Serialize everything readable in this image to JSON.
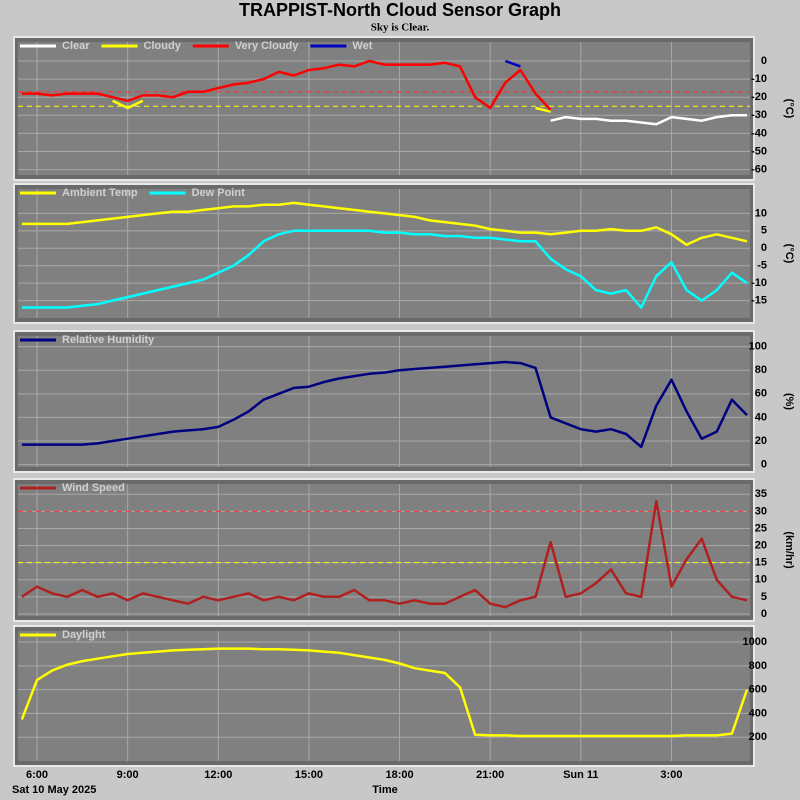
{
  "title": "TRAPPIST-North Cloud Sensor Graph",
  "subtitle": "Sky is Clear.",
  "chart_data": [
    {
      "type": "line",
      "ylabel": "(°C)",
      "ylim": [
        -63,
        10.5
      ],
      "yticks": [
        0,
        -10,
        -20,
        -30,
        -40,
        -50,
        -60
      ],
      "grid": true,
      "x": [
        5.5,
        6,
        6.5,
        7,
        7.5,
        8,
        8.5,
        9,
        9.5,
        10,
        10.5,
        11,
        11.5,
        12,
        12.5,
        13,
        13.5,
        14,
        14.5,
        15,
        15.5,
        16,
        16.5,
        17,
        17.5,
        18,
        18.5,
        19,
        19.5,
        20,
        20.5,
        21,
        21.5,
        22,
        22.5,
        23,
        23.5,
        24,
        24.5,
        25,
        25.5,
        26,
        26.5,
        27,
        27.5,
        28,
        28.5,
        29,
        29.5
      ],
      "thresholds": [
        {
          "value": -17,
          "color": "#ff3030"
        },
        {
          "value": -25,
          "color": "#ffff00"
        }
      ],
      "series": [
        {
          "name": "Clear",
          "color": "#ffffff",
          "values": [
            null,
            null,
            null,
            null,
            null,
            null,
            null,
            null,
            null,
            null,
            null,
            null,
            null,
            null,
            null,
            null,
            null,
            null,
            null,
            null,
            null,
            null,
            null,
            null,
            null,
            null,
            null,
            null,
            null,
            null,
            null,
            null,
            null,
            null,
            null,
            -33,
            -31,
            -32,
            -32,
            -33,
            -33,
            -34,
            -35,
            -31,
            -32,
            -33,
            -31,
            -30,
            -30
          ]
        },
        {
          "name": "Cloudy",
          "color": "#ffff00",
          "values": [
            null,
            null,
            null,
            null,
            null,
            null,
            -22,
            -26,
            -22,
            null,
            null,
            null,
            null,
            null,
            null,
            null,
            null,
            null,
            null,
            null,
            null,
            null,
            null,
            null,
            null,
            null,
            null,
            null,
            null,
            null,
            null,
            null,
            null,
            null,
            -26,
            -28,
            null,
            null,
            null,
            null,
            null,
            null,
            null,
            null,
            null,
            null,
            null,
            null,
            null
          ]
        },
        {
          "name": "Very Cloudy",
          "color": "#ff0000",
          "values": [
            -18,
            -18,
            -19,
            -18,
            -18,
            -18,
            -20,
            -22,
            -19,
            -19,
            -20,
            -17,
            -17,
            -15,
            -13,
            -12,
            -10,
            -6,
            -8,
            -5,
            -4,
            -2,
            -3,
            0,
            -2,
            -2,
            -2,
            -2,
            -1,
            -3,
            -20,
            -26,
            -12,
            -5,
            -18,
            -27,
            null,
            null,
            null,
            null,
            null,
            null,
            null,
            null,
            null,
            null,
            null,
            null,
            null
          ]
        },
        {
          "name": "Wet",
          "color": "#0000c0",
          "values": [
            null,
            null,
            null,
            null,
            null,
            null,
            null,
            null,
            null,
            null,
            null,
            null,
            null,
            null,
            null,
            null,
            null,
            null,
            null,
            null,
            null,
            null,
            null,
            null,
            null,
            null,
            null,
            null,
            null,
            null,
            null,
            null,
            0,
            -3,
            null,
            null,
            null,
            null,
            null,
            null,
            null,
            null,
            null,
            null,
            null,
            null,
            null,
            null,
            null
          ]
        }
      ]
    },
    {
      "type": "line",
      "ylabel": "(°C)",
      "ylim": [
        -20,
        17
      ],
      "yticks": [
        10,
        5,
        0,
        -5,
        -10,
        -15
      ],
      "grid": true,
      "x": [
        5.5,
        6,
        6.5,
        7,
        7.5,
        8,
        8.5,
        9,
        9.5,
        10,
        10.5,
        11,
        11.5,
        12,
        12.5,
        13,
        13.5,
        14,
        14.5,
        15,
        15.5,
        16,
        16.5,
        17,
        17.5,
        18,
        18.5,
        19,
        19.5,
        20,
        20.5,
        21,
        21.5,
        22,
        22.5,
        23,
        23.5,
        24,
        24.5,
        25,
        25.5,
        26,
        26.5,
        27,
        27.5,
        28,
        28.5,
        29,
        29.5
      ],
      "series": [
        {
          "name": "Ambient Temp",
          "color": "#ffff00",
          "values": [
            7,
            7,
            7,
            7,
            7.5,
            8,
            8.5,
            9,
            9.5,
            10,
            10.5,
            10.5,
            11,
            11.5,
            12,
            12,
            12.5,
            12.5,
            13,
            12.5,
            12,
            11.5,
            11,
            10.5,
            10,
            9.5,
            9,
            8,
            7.5,
            7,
            6.5,
            5.5,
            5,
            4.5,
            4.5,
            4,
            4.5,
            5,
            5,
            5.5,
            5,
            5,
            6,
            4,
            1,
            3,
            4,
            3,
            2
          ]
        },
        {
          "name": "Dew Point",
          "color": "#00ffff",
          "values": [
            -17,
            -17,
            -17,
            -17,
            -16.5,
            -16,
            -15,
            -14,
            -13,
            -12,
            -11,
            -10,
            -9,
            -7,
            -5,
            -2,
            2,
            4,
            5,
            5,
            5,
            5,
            5,
            5,
            4.5,
            4.5,
            4,
            4,
            3.5,
            3.5,
            3,
            3,
            2.5,
            2,
            2,
            -3,
            -6,
            -8,
            -12,
            -13,
            -12,
            -17,
            -8,
            -4,
            -12,
            -15,
            -12,
            -7,
            -10
          ]
        }
      ]
    },
    {
      "type": "line",
      "ylabel": "(%)",
      "ylim": [
        -2,
        109
      ],
      "yticks": [
        100,
        80,
        60,
        40,
        20,
        0
      ],
      "grid": true,
      "x": [
        5.5,
        6,
        6.5,
        7,
        7.5,
        8,
        8.5,
        9,
        9.5,
        10,
        10.5,
        11,
        11.5,
        12,
        12.5,
        13,
        13.5,
        14,
        14.5,
        15,
        15.5,
        16,
        16.5,
        17,
        17.5,
        18,
        18.5,
        19,
        19.5,
        20,
        20.5,
        21,
        21.5,
        22,
        22.5,
        23,
        23.5,
        24,
        24.5,
        25,
        25.5,
        26,
        26.5,
        27,
        27.5,
        28,
        28.5,
        29,
        29.5
      ],
      "series": [
        {
          "name": "Relative Humidity",
          "color": "#000080",
          "values": [
            17,
            17,
            17,
            17,
            17,
            18,
            20,
            22,
            24,
            26,
            28,
            29,
            30,
            32,
            38,
            45,
            55,
            60,
            65,
            66,
            70,
            73,
            75,
            77,
            78,
            80,
            81,
            82,
            83,
            84,
            85,
            86,
            87,
            86,
            82,
            40,
            35,
            30,
            28,
            30,
            26,
            15,
            50,
            72,
            45,
            22,
            28,
            55,
            42
          ]
        }
      ]
    },
    {
      "type": "line",
      "ylabel": "(km/hr)",
      "ylim": [
        -0.6,
        38
      ],
      "yticks": [
        35,
        30,
        25,
        20,
        15,
        10,
        5,
        0
      ],
      "grid": true,
      "x": [
        5.5,
        6,
        6.5,
        7,
        7.5,
        8,
        8.5,
        9,
        9.5,
        10,
        10.5,
        11,
        11.5,
        12,
        12.5,
        13,
        13.5,
        14,
        14.5,
        15,
        15.5,
        16,
        16.5,
        17,
        17.5,
        18,
        18.5,
        19,
        19.5,
        20,
        20.5,
        21,
        21.5,
        22,
        22.5,
        23,
        23.5,
        24,
        24.5,
        25,
        25.5,
        26,
        26.5,
        27,
        27.5,
        28,
        28.5,
        29,
        29.5
      ],
      "thresholds": [
        {
          "value": 30,
          "color": "#ff3030"
        },
        {
          "value": 15,
          "color": "#ffff00"
        }
      ],
      "series": [
        {
          "name": "Wind Speed",
          "color": "#b02020",
          "values": [
            5,
            8,
            6,
            5,
            7,
            5,
            6,
            4,
            6,
            5,
            4,
            3,
            5,
            4,
            5,
            6,
            4,
            5,
            4,
            6,
            5,
            5,
            7,
            4,
            4,
            3,
            4,
            3,
            3,
            5,
            7,
            3,
            2,
            4,
            5,
            21,
            5,
            6,
            9,
            13,
            6,
            5,
            33,
            8,
            16,
            22,
            10,
            5,
            4
          ]
        }
      ]
    },
    {
      "type": "line",
      "ylim": [
        0,
        1093
      ],
      "yticks": [
        1000,
        800,
        600,
        400,
        200
      ],
      "grid": true,
      "x": [
        5.5,
        6,
        6.5,
        7,
        7.5,
        8,
        8.5,
        9,
        9.5,
        10,
        10.5,
        11,
        11.5,
        12,
        12.5,
        13,
        13.5,
        14,
        14.5,
        15,
        15.5,
        16,
        16.5,
        17,
        17.5,
        18,
        18.5,
        19,
        19.5,
        20,
        20.5,
        21,
        21.5,
        22,
        22.5,
        23,
        23.5,
        24,
        24.5,
        25,
        25.5,
        26,
        26.5,
        27,
        27.5,
        28,
        28.5,
        29,
        29.5
      ],
      "xlim": [
        5.37,
        29.6
      ],
      "xticks": [
        {
          "value": 6,
          "label": "6:00"
        },
        {
          "value": 9,
          "label": "9:00"
        },
        {
          "value": 12,
          "label": "12:00"
        },
        {
          "value": 15,
          "label": "15:00"
        },
        {
          "value": 18,
          "label": "18:00"
        },
        {
          "value": 21,
          "label": "21:00"
        },
        {
          "value": 24,
          "label": "Sun 11"
        },
        {
          "value": 27,
          "label": "3:00"
        }
      ],
      "xlabel": "Time",
      "date_label": "Sat 10 May 2025",
      "series": [
        {
          "name": "Daylight",
          "color": "#ffff00",
          "values": [
            350,
            680,
            760,
            810,
            840,
            860,
            880,
            900,
            910,
            920,
            930,
            935,
            940,
            945,
            945,
            945,
            940,
            940,
            935,
            930,
            920,
            910,
            890,
            870,
            850,
            820,
            780,
            760,
            740,
            620,
            220,
            215,
            215,
            210,
            210,
            210,
            210,
            210,
            210,
            210,
            210,
            210,
            210,
            210,
            215,
            215,
            215,
            230,
            600
          ]
        }
      ]
    }
  ]
}
